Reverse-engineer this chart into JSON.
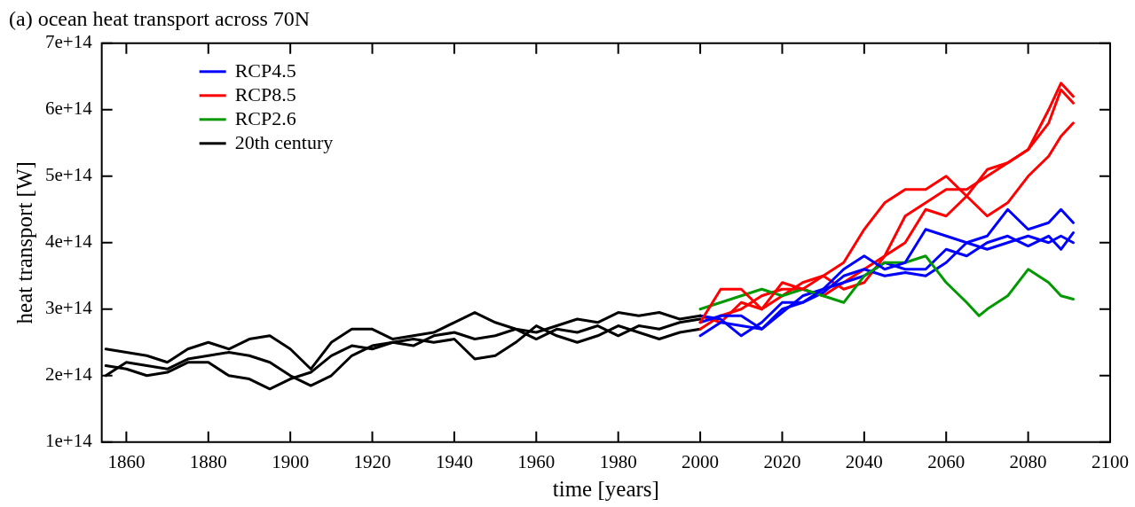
{
  "chart_data": {
    "type": "line",
    "title": "(a) ocean heat transport across 70N",
    "xlabel": "time [years]",
    "ylabel": "heat transport [W]",
    "xlim": [
      1854,
      2100
    ],
    "xticks": [
      1860,
      1880,
      1900,
      1920,
      1940,
      1960,
      1980,
      2000,
      2020,
      2040,
      2060,
      2080,
      2100
    ],
    "ylim": [
      100000000000000.0,
      700000000000000.0
    ],
    "yticks": [
      {
        "value": 100000000000000.0,
        "label": "1e+14"
      },
      {
        "value": 200000000000000.0,
        "label": "2e+14"
      },
      {
        "value": 300000000000000.0,
        "label": "3e+14"
      },
      {
        "value": 400000000000000.0,
        "label": "4e+14"
      },
      {
        "value": 500000000000000.0,
        "label": "5e+14"
      },
      {
        "value": 600000000000000.0,
        "label": "6e+14"
      },
      {
        "value": 700000000000000.0,
        "label": "7e+14"
      }
    ],
    "grid": false,
    "legend": "top left",
    "marker": "none",
    "line_style": "solid",
    "series": [
      {
        "name": "RCP4.5",
        "color": "#0000ff",
        "x": [
          2000,
          2005,
          2010,
          2015,
          2020,
          2025,
          2030,
          2035,
          2040,
          2045,
          2050,
          2055,
          2060,
          2065,
          2070,
          2075,
          2080,
          2085,
          2088,
          2091
        ],
        "values": [
          260000000000000.0,
          280000000000000.0,
          275000000000000.0,
          270000000000000.0,
          300000000000000.0,
          310000000000000.0,
          330000000000000.0,
          360000000000000.0,
          380000000000000.0,
          360000000000000.0,
          370000000000000.0,
          420000000000000.0,
          410000000000000.0,
          400000000000000.0,
          410000000000000.0,
          450000000000000.0,
          420000000000000.0,
          430000000000000.0,
          450000000000000.0,
          430000000000000.0
        ]
      },
      {
        "name": "RCP8.5",
        "color": "#ff0000",
        "x": [
          2000,
          2005,
          2010,
          2015,
          2020,
          2025,
          2030,
          2035,
          2040,
          2045,
          2050,
          2055,
          2060,
          2065,
          2070,
          2075,
          2080,
          2085,
          2088,
          2091
        ],
        "values": [
          280000000000000.0,
          330000000000000.0,
          330000000000000.0,
          300000000000000.0,
          340000000000000.0,
          330000000000000.0,
          350000000000000.0,
          370000000000000.0,
          420000000000000.0,
          460000000000000.0,
          480000000000000.0,
          480000000000000.0,
          500000000000000.0,
          470000000000000.0,
          510000000000000.0,
          520000000000000.0,
          540000000000000.0,
          600000000000000.0,
          640000000000000.0,
          620000000000000.0
        ]
      },
      {
        "name": "RCP2.6",
        "color": "#009900",
        "x": [
          2000,
          2005,
          2010,
          2015,
          2020,
          2025,
          2030,
          2035,
          2040,
          2045,
          2050,
          2055,
          2060,
          2065,
          2068,
          2070,
          2075,
          2080,
          2085,
          2088,
          2091
        ],
        "values": [
          300000000000000.0,
          310000000000000.0,
          320000000000000.0,
          330000000000000.0,
          320000000000000.0,
          330000000000000.0,
          320000000000000.0,
          310000000000000.0,
          350000000000000.0,
          370000000000000.0,
          370000000000000.0,
          380000000000000.0,
          340000000000000.0,
          310000000000000.0,
          290000000000000.0,
          300000000000000.0,
          320000000000000.0,
          360000000000000.0,
          340000000000000.0,
          320000000000000.0,
          315000000000000.0
        ]
      },
      {
        "name": "20th century",
        "color": "#000000",
        "x": [
          1855,
          1860,
          1865,
          1870,
          1875,
          1880,
          1885,
          1890,
          1895,
          1900,
          1905,
          1910,
          1915,
          1920,
          1925,
          1930,
          1935,
          1940,
          1945,
          1950,
          1955,
          1960,
          1965,
          1970,
          1975,
          1980,
          1985,
          1990,
          1995,
          2000
        ],
        "values": [
          240000000000000.0,
          235000000000000.0,
          230000000000000.0,
          220000000000000.0,
          240000000000000.0,
          250000000000000.0,
          240000000000000.0,
          255000000000000.0,
          260000000000000.0,
          240000000000000.0,
          210000000000000.0,
          250000000000000.0,
          270000000000000.0,
          270000000000000.0,
          255000000000000.0,
          260000000000000.0,
          265000000000000.0,
          280000000000000.0,
          295000000000000.0,
          280000000000000.0,
          270000000000000.0,
          265000000000000.0,
          275000000000000.0,
          285000000000000.0,
          280000000000000.0,
          295000000000000.0,
          290000000000000.0,
          295000000000000.0,
          285000000000000.0,
          290000000000000.0
        ]
      },
      {
        "color": "#0000ff",
        "x": [
          2000,
          2005,
          2010,
          2015,
          2020,
          2025,
          2030,
          2035,
          2040,
          2045,
          2050,
          2055,
          2060,
          2065,
          2070,
          2075,
          2080,
          2085,
          2088,
          2091
        ],
        "values": [
          280000000000000.0,
          290000000000000.0,
          290000000000000.0,
          270000000000000.0,
          295000000000000.0,
          320000000000000.0,
          330000000000000.0,
          340000000000000.0,
          350000000000000.0,
          370000000000000.0,
          360000000000000.0,
          360000000000000.0,
          390000000000000.0,
          380000000000000.0,
          400000000000000.0,
          410000000000000.0,
          395000000000000.0,
          410000000000000.0,
          390000000000000.0,
          415000000000000.0
        ]
      },
      {
        "color": "#0000ff",
        "x": [
          2000,
          2005,
          2010,
          2015,
          2020,
          2025,
          2030,
          2035,
          2040,
          2045,
          2050,
          2055,
          2060,
          2065,
          2070,
          2075,
          2080,
          2085,
          2088,
          2091
        ],
        "values": [
          290000000000000.0,
          285000000000000.0,
          260000000000000.0,
          280000000000000.0,
          310000000000000.0,
          310000000000000.0,
          325000000000000.0,
          350000000000000.0,
          360000000000000.0,
          350000000000000.0,
          355000000000000.0,
          350000000000000.0,
          370000000000000.0,
          400000000000000.0,
          390000000000000.0,
          400000000000000.0,
          410000000000000.0,
          400000000000000.0,
          410000000000000.0,
          400000000000000.0
        ]
      },
      {
        "color": "#ff0000",
        "x": [
          2000,
          2005,
          2010,
          2015,
          2020,
          2025,
          2030,
          2035,
          2040,
          2045,
          2050,
          2055,
          2060,
          2065,
          2070,
          2075,
          2080,
          2085,
          2088,
          2091
        ],
        "values": [
          270000000000000.0,
          290000000000000.0,
          300000000000000.0,
          320000000000000.0,
          330000000000000.0,
          330000000000000.0,
          320000000000000.0,
          340000000000000.0,
          360000000000000.0,
          380000000000000.0,
          440000000000000.0,
          460000000000000.0,
          480000000000000.0,
          480000000000000.0,
          500000000000000.0,
          520000000000000.0,
          540000000000000.0,
          580000000000000.0,
          630000000000000.0,
          610000000000000.0
        ]
      },
      {
        "color": "#ff0000",
        "x": [
          2000,
          2005,
          2010,
          2015,
          2020,
          2025,
          2030,
          2035,
          2040,
          2045,
          2050,
          2055,
          2060,
          2065,
          2070,
          2075,
          2080,
          2085,
          2088,
          2091
        ],
        "values": [
          290000000000000.0,
          280000000000000.0,
          310000000000000.0,
          300000000000000.0,
          320000000000000.0,
          340000000000000.0,
          350000000000000.0,
          330000000000000.0,
          340000000000000.0,
          380000000000000.0,
          400000000000000.0,
          450000000000000.0,
          440000000000000.0,
          470000000000000.0,
          440000000000000.0,
          460000000000000.0,
          500000000000000.0,
          530000000000000.0,
          560000000000000.0,
          580000000000000.0
        ]
      },
      {
        "color": "#000000",
        "x": [
          1855,
          1860,
          1865,
          1870,
          1875,
          1880,
          1885,
          1890,
          1895,
          1900,
          1905,
          1910,
          1915,
          1920,
          1925,
          1930,
          1935,
          1940,
          1945,
          1950,
          1955,
          1960,
          1965,
          1970,
          1975,
          1980,
          1985,
          1990,
          1995,
          2000
        ],
        "values": [
          200000000000000.0,
          220000000000000.0,
          215000000000000.0,
          210000000000000.0,
          225000000000000.0,
          230000000000000.0,
          235000000000000.0,
          230000000000000.0,
          220000000000000.0,
          200000000000000.0,
          185000000000000.0,
          200000000000000.0,
          230000000000000.0,
          245000000000000.0,
          250000000000000.0,
          255000000000000.0,
          250000000000000.0,
          255000000000000.0,
          225000000000000.0,
          230000000000000.0,
          250000000000000.0,
          275000000000000.0,
          260000000000000.0,
          250000000000000.0,
          260000000000000.0,
          275000000000000.0,
          265000000000000.0,
          255000000000000.0,
          265000000000000.0,
          270000000000000.0
        ]
      },
      {
        "color": "#000000",
        "x": [
          1855,
          1860,
          1865,
          1870,
          1875,
          1880,
          1885,
          1890,
          1895,
          1900,
          1905,
          1910,
          1915,
          1920,
          1925,
          1930,
          1935,
          1940,
          1945,
          1950,
          1955,
          1960,
          1965,
          1970,
          1975,
          1980,
          1985,
          1990,
          1995,
          2000
        ],
        "values": [
          215000000000000.0,
          210000000000000.0,
          200000000000000.0,
          205000000000000.0,
          220000000000000.0,
          220000000000000.0,
          200000000000000.0,
          195000000000000.0,
          180000000000000.0,
          195000000000000.0,
          205000000000000.0,
          230000000000000.0,
          245000000000000.0,
          240000000000000.0,
          250000000000000.0,
          245000000000000.0,
          260000000000000.0,
          265000000000000.0,
          255000000000000.0,
          260000000000000.0,
          270000000000000.0,
          255000000000000.0,
          270000000000000.0,
          265000000000000.0,
          275000000000000.0,
          260000000000000.0,
          275000000000000.0,
          270000000000000.0,
          280000000000000.0,
          285000000000000.0
        ]
      }
    ]
  }
}
